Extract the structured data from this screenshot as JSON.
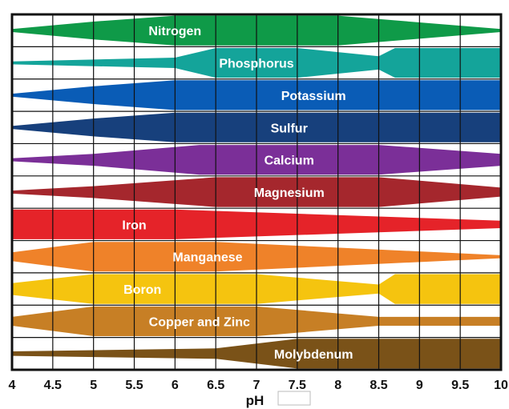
{
  "chart_data": {
    "type": "area",
    "xlabel": "pH",
    "xlim": [
      4,
      10
    ],
    "x_ticks": [
      "4",
      "4.5",
      "5",
      "5.5",
      "6",
      "6.5",
      "7",
      "7.5",
      "8",
      "8.5",
      "9",
      "9.5",
      "10"
    ],
    "grid": true,
    "series": [
      {
        "name": "Nitrogen",
        "color": "#0f9a48",
        "x": [
          4,
          5,
          6,
          8,
          10
        ],
        "width": [
          0.1,
          0.6,
          1.0,
          1.0,
          0.1
        ]
      },
      {
        "name": "Phosphorus",
        "color": "#14a49a",
        "x": [
          4,
          6,
          6.5,
          7.5,
          8.5,
          8.7,
          10
        ],
        "width": [
          0.1,
          0.35,
          1.0,
          1.0,
          0.45,
          1.0,
          1.0
        ]
      },
      {
        "name": "Potassium",
        "color": "#0a5cb6",
        "x": [
          4,
          5,
          6,
          10
        ],
        "width": [
          0.1,
          0.6,
          1.0,
          1.0
        ]
      },
      {
        "name": "Sulfur",
        "color": "#17407c",
        "x": [
          4,
          5,
          6,
          10
        ],
        "width": [
          0.1,
          0.6,
          1.0,
          1.0
        ]
      },
      {
        "name": "Calcium",
        "color": "#7b2f98",
        "x": [
          4,
          5,
          6.3,
          8.5,
          10
        ],
        "width": [
          0.1,
          0.4,
          1.0,
          1.0,
          0.4
        ]
      },
      {
        "name": "Magnesium",
        "color": "#a5272d",
        "x": [
          4,
          5,
          6.5,
          8.5,
          10
        ],
        "width": [
          0.1,
          0.4,
          1.0,
          1.0,
          0.3
        ]
      },
      {
        "name": "Iron",
        "color": "#e52329",
        "x": [
          4,
          5,
          6,
          10
        ],
        "width": [
          1.0,
          1.0,
          1.0,
          0.25
        ]
      },
      {
        "name": "Manganese",
        "color": "#ef8229",
        "x": [
          4,
          5,
          6.5,
          10
        ],
        "width": [
          0.3,
          1.0,
          1.0,
          0.1
        ]
      },
      {
        "name": "Boron",
        "color": "#f5c40f",
        "x": [
          4,
          5,
          7,
          8.5,
          8.7,
          10
        ],
        "width": [
          0.4,
          1.0,
          1.0,
          0.3,
          1.0,
          1.0
        ]
      },
      {
        "name": "Copper and Zinc",
        "color": "#c77f25",
        "x": [
          4,
          5,
          7,
          8.5,
          10
        ],
        "width": [
          0.3,
          1.0,
          1.0,
          0.3,
          0.3
        ]
      },
      {
        "name": "Molybdenum",
        "color": "#7a5218",
        "x": [
          4,
          6.5,
          7.5,
          10
        ],
        "width": [
          0.15,
          0.35,
          1.0,
          1.0
        ]
      }
    ]
  }
}
